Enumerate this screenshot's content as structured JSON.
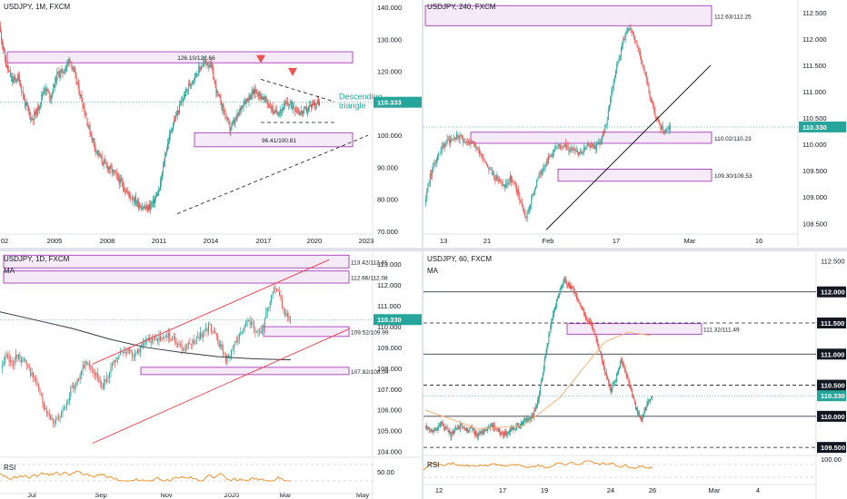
{
  "chart_data": [
    {
      "id": "monthly",
      "type": "candlestick",
      "symbol_label": "USDJPY, 1M, FXCM",
      "x_ticks": [
        "02",
        "2005",
        "2008",
        "2011",
        "2014",
        "2017",
        "2020",
        "2023"
      ],
      "y_ticks": [
        "140.000",
        "130.000",
        "120.000",
        "110.000",
        "100.000",
        "90.000",
        "80.000",
        "70.000"
      ],
      "ylim": [
        70,
        140
      ],
      "last_price": "110.333",
      "zones": [
        {
          "label": "126.10/122.66",
          "high": 126.1,
          "low": 122.66
        },
        {
          "label": "96.41/100.81",
          "high": 100.81,
          "low": 96.41
        }
      ],
      "annotation": "Descending\ntriangle",
      "annotation_lines": [
        "Descending",
        "triangle"
      ],
      "ohlc_path": [
        134,
        122,
        117,
        118,
        110,
        105,
        108,
        115,
        112,
        119,
        120,
        124,
        117,
        110,
        102,
        96,
        92,
        90,
        88,
        85,
        82,
        80,
        78,
        77,
        79,
        83,
        95,
        103,
        108,
        113,
        117,
        120,
        123,
        122,
        113,
        108,
        102,
        105,
        110,
        112,
        114,
        112,
        110,
        107,
        108,
        110,
        109,
        107,
        108,
        110,
        110.33
      ]
    },
    {
      "id": "h4",
      "type": "candlestick",
      "symbol_label": "USDJPY, 240, FXCM",
      "x_ticks": [
        "13",
        "21",
        "Feb",
        "17",
        "Mar",
        "16"
      ],
      "y_ticks": [
        "112.500",
        "112.000",
        "111.500",
        "111.000",
        "110.500",
        "110.000",
        "109.500",
        "109.000",
        "108.500"
      ],
      "ylim": [
        108.35,
        112.6
      ],
      "last_price": "110.330",
      "zones": [
        {
          "label": "112.63/112.25",
          "high": 112.63,
          "low": 112.25
        },
        {
          "label": "110.02/110.23",
          "high": 110.23,
          "low": 110.02
        },
        {
          "label": "109.30/109.53",
          "high": 109.53,
          "low": 109.3
        }
      ],
      "ohlc_path": [
        108.9,
        109.4,
        109.7,
        109.9,
        110.05,
        110.1,
        110.15,
        110.1,
        110.05,
        110.0,
        109.9,
        109.75,
        109.55,
        109.4,
        109.3,
        109.2,
        109.35,
        109.2,
        108.9,
        108.6,
        108.95,
        109.3,
        109.55,
        109.7,
        109.85,
        109.95,
        110.0,
        109.9,
        109.95,
        109.85,
        109.9,
        110.0,
        109.95,
        110.05,
        110.4,
        111.0,
        111.5,
        111.9,
        112.2,
        112.1,
        111.8,
        111.4,
        111.0,
        110.6,
        110.35,
        110.2,
        110.33
      ]
    },
    {
      "id": "daily",
      "type": "candlestick",
      "symbol_label": "USDJPY, 1D, FXCM",
      "ma_label": "MA",
      "rsi_label": "RSI",
      "rsi_tick": "50.00",
      "x_ticks": [
        "Jul",
        "Sep",
        "Nov",
        "2020",
        "Mar",
        "May"
      ],
      "y_ticks": [
        "113.000",
        "112.000",
        "111.000",
        "110.000",
        "109.000",
        "108.000",
        "107.000",
        "106.000",
        "105.000",
        "104.000"
      ],
      "ylim": [
        103.9,
        113.3
      ],
      "last_price": "110.330",
      "zones": [
        {
          "label": "113.42/112.81",
          "high": 113.42,
          "low": 112.81
        },
        {
          "label": "112.66/112.08",
          "high": 112.66,
          "low": 112.08
        },
        {
          "label": "109.52/109.99",
          "high": 109.99,
          "low": 109.52
        },
        {
          "label": "107.82/108.04",
          "high": 108.04,
          "low": 107.82
        }
      ],
      "ohlc_path": [
        108.0,
        108.5,
        108.2,
        108.6,
        108.4,
        108.0,
        107.6,
        107.0,
        106.2,
        105.8,
        105.4,
        105.6,
        106.3,
        106.9,
        107.3,
        107.9,
        108.3,
        108.0,
        107.6,
        107.2,
        107.7,
        108.2,
        108.6,
        108.8,
        108.9,
        108.6,
        109.0,
        109.4,
        109.2,
        109.5,
        109.3,
        109.6,
        109.4,
        109.2,
        108.9,
        109.1,
        109.3,
        109.5,
        109.8,
        110.0,
        109.6,
        109.0,
        108.4,
        108.7,
        109.4,
        109.9,
        110.2,
        110.0,
        109.7,
        110.0,
        111.0,
        112.0,
        111.5,
        110.6,
        110.33
      ]
    },
    {
      "id": "h1",
      "type": "candlestick",
      "symbol_label": "USDJPY, 60, FXCM",
      "ma_label": "MA",
      "rsi_label": "RSI",
      "x_ticks": [
        "12",
        "17",
        "19",
        "24",
        "26",
        "Mar",
        "4"
      ],
      "y_ticks": [
        "112.500",
        "112.000",
        "111.500",
        "111.000",
        "110.500",
        "110.000",
        "109.500"
      ],
      "rsi_tick": "100.00",
      "ylim": [
        109.4,
        112.55
      ],
      "last_price": "110.330",
      "levels": [
        {
          "label": "112.000",
          "value": 112.0,
          "style": "solid"
        },
        {
          "label": "111.500",
          "value": 111.5,
          "style": "dashed"
        },
        {
          "label": "111.000",
          "value": 111.0,
          "style": "solid"
        },
        {
          "label": "110.500",
          "value": 110.5,
          "style": "dashed"
        },
        {
          "label": "110.000",
          "value": 110.0,
          "style": "solid"
        },
        {
          "label": "109.500",
          "value": 109.5,
          "style": "dashed"
        }
      ],
      "zones": [
        {
          "label": "111.32/111.49",
          "high": 111.49,
          "low": 111.32
        }
      ],
      "ohlc_path": [
        109.85,
        109.8,
        109.75,
        109.9,
        109.8,
        109.7,
        109.8,
        109.85,
        109.75,
        109.8,
        109.7,
        109.75,
        109.8,
        109.85,
        109.8,
        109.7,
        109.75,
        109.8,
        109.85,
        109.9,
        109.95,
        110.0,
        110.3,
        110.8,
        111.3,
        111.7,
        112.0,
        112.2,
        112.1,
        112.0,
        111.8,
        111.6,
        111.5,
        111.3,
        111.0,
        110.7,
        110.4,
        110.6,
        110.9,
        110.7,
        110.4,
        110.1,
        109.95,
        110.2,
        110.33
      ]
    }
  ],
  "colors": {
    "up": "#26a69a",
    "down": "#ef5350",
    "price_tag": "#26a69a",
    "zone_border": "#9c27b0",
    "zone_fill": "#f3e5f5",
    "channel": "#f23645",
    "ma_daily": "#363a45",
    "ma_h1": "#f7b27a",
    "rsi": "#f57c00"
  }
}
